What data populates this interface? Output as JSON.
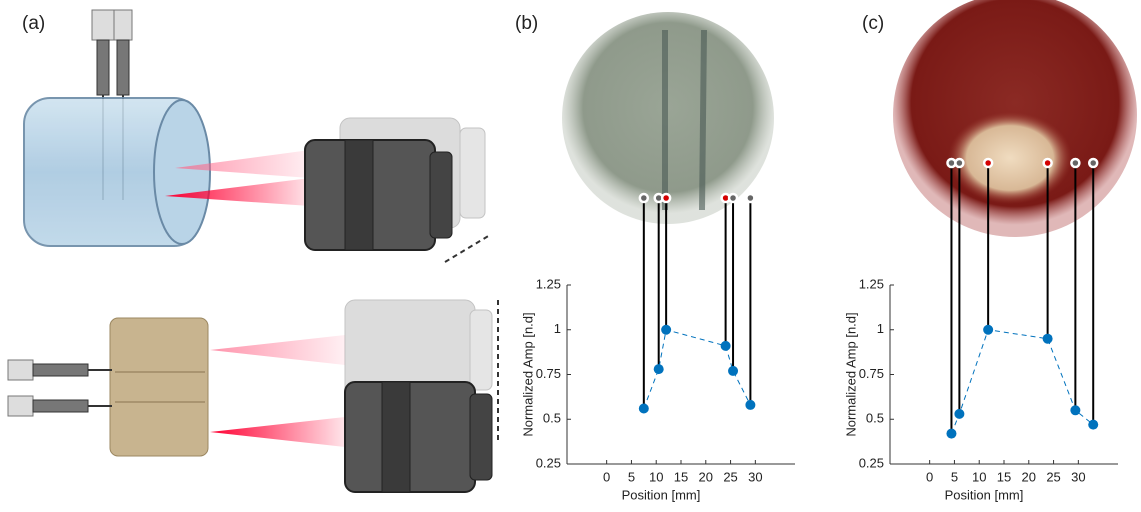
{
  "illustration": {
    "label": "(a)"
  },
  "chart_data": [
    {
      "type": "line",
      "panel_label": "(b)",
      "x_label": "Position [mm]",
      "y_label": "Normalized Amp [n.d]",
      "x": [
        7.5,
        10.5,
        12,
        24,
        25.5,
        29
      ],
      "values": [
        0.56,
        0.78,
        1.0,
        0.91,
        0.77,
        0.58
      ],
      "color": "#0072bd",
      "photo_marker_colors": [
        "#666666",
        "#666666",
        "#d40000",
        "#d40000",
        "#666666",
        "#666666"
      ],
      "xlim": [
        -8,
        38
      ],
      "xticks": [
        0,
        5,
        10,
        15,
        20,
        25,
        30
      ],
      "ylim": [
        0.25,
        1.25
      ],
      "yticks": [
        0.25,
        0.5,
        0.75,
        1,
        1.25
      ]
    },
    {
      "type": "line",
      "panel_label": "(c)",
      "x_label": "Position [mm]",
      "y_label": "Normalized Amp [n.d]",
      "x": [
        4.4,
        6,
        11.8,
        23.8,
        29.4,
        33
      ],
      "values": [
        0.42,
        0.53,
        1.0,
        0.95,
        0.55,
        0.47
      ],
      "color": "#0072bd",
      "photo_marker_colors": [
        "#666666",
        "#666666",
        "#d40000",
        "#d40000",
        "#666666",
        "#666666"
      ],
      "xlim": [
        -8,
        38
      ],
      "xticks": [
        0,
        5,
        10,
        15,
        20,
        25,
        30
      ],
      "ylim": [
        0.25,
        1.25
      ],
      "yticks": [
        0.25,
        0.5,
        0.75,
        1,
        1.25
      ]
    }
  ]
}
